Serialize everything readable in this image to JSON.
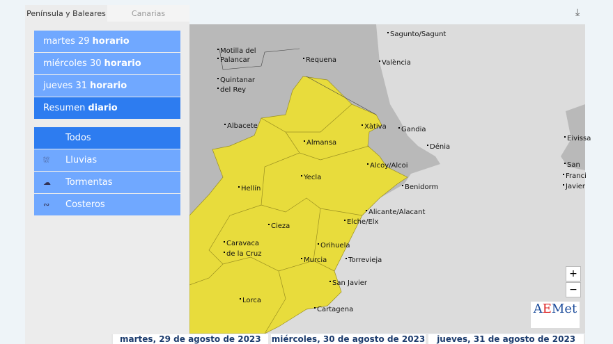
{
  "tabs": [
    "Península y Baleares",
    "Canarias"
  ],
  "days": [
    {
      "label": "martes 29",
      "bold": "horario"
    },
    {
      "label": "miércoles 30",
      "bold": "horario"
    },
    {
      "label": "jueves 31",
      "bold": "horario"
    },
    {
      "label": "Resumen",
      "bold": "diario"
    }
  ],
  "filters": [
    {
      "label": "Todos",
      "icon": ""
    },
    {
      "label": "Lluvias",
      "icon": "rain-icon"
    },
    {
      "label": "Tormentas",
      "icon": "storm-icon"
    },
    {
      "label": "Costeros",
      "icon": "coastal-icon"
    }
  ],
  "cities": [
    "Sagunto/Sagunt",
    "València",
    "Motilla del",
    "Palancar",
    "Requena",
    "Quintanar",
    "del Rey",
    "Albacete",
    "Xàtiva",
    "Gandia",
    "Dénia",
    "Almansa",
    "Alcoy/Alcoi",
    "Benidorm",
    "Yecla",
    "Hellín",
    "Alicante/Alacant",
    "Elche/Elx",
    "Cieza",
    "Orihuela",
    "Caravaca",
    "de la Cruz",
    "Murcia",
    "Torrevieja",
    "San Javier",
    "Lorca",
    "Cartagena",
    "Eivissa",
    "San",
    "Franci",
    "Javier"
  ],
  "zoom": {
    "in": "+",
    "out": "−"
  },
  "logo": "AEMet",
  "bottom_dates": [
    "martes, 29 de agosto de 2023",
    "miércoles, 30 de agosto de 2023",
    "jueves, 31 de agosto de 2023"
  ],
  "colors": {
    "warning_yellow": "#e8dc3c",
    "land": "#b9b9b9",
    "sea": "#dcdcdc",
    "menu": "#70a8ff",
    "menu_active": "#2d7cf0"
  }
}
